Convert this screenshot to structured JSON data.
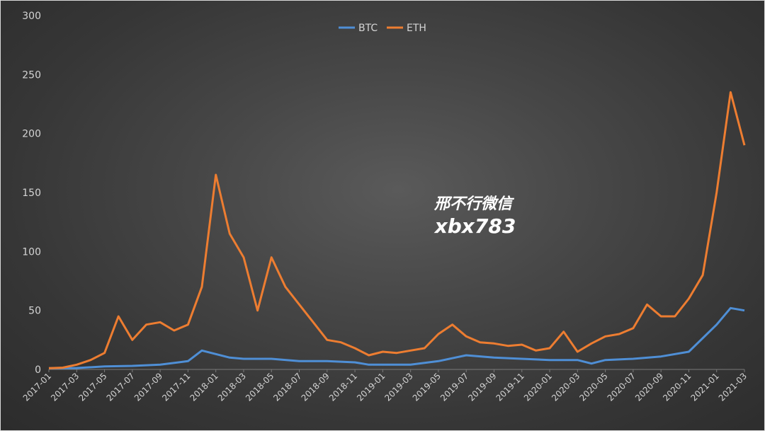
{
  "chart_data": {
    "type": "line",
    "title": "",
    "xlabel": "",
    "ylabel": "",
    "ylim": [
      0,
      300
    ],
    "yticks": [
      0,
      50,
      100,
      150,
      200,
      250,
      300
    ],
    "xlim": [
      "2017-01",
      "2021-03"
    ],
    "xtick_labels": [
      "2017-01",
      "2017-03",
      "2017-05",
      "2017-07",
      "2017-09",
      "2017-11",
      "2018-01",
      "2018-03",
      "2018-05",
      "2018-07",
      "2018-09",
      "2018-11",
      "2019-01",
      "2019-03",
      "2019-05",
      "2019-07",
      "2019-09",
      "2019-11",
      "2020-01",
      "2020-03",
      "2020-05",
      "2020-07",
      "2020-09",
      "2020-11",
      "2021-01",
      "2021-03"
    ],
    "grid": false,
    "legend_position": "top-center",
    "series": [
      {
        "name": "BTC",
        "color": "#4f8fd6",
        "x": [
          "2017-01",
          "2017-03",
          "2017-05",
          "2017-07",
          "2017-09",
          "2017-11",
          "2017-12",
          "2018-01",
          "2018-02",
          "2018-03",
          "2018-05",
          "2018-07",
          "2018-09",
          "2018-11",
          "2018-12",
          "2019-01",
          "2019-03",
          "2019-05",
          "2019-07",
          "2019-09",
          "2019-11",
          "2020-01",
          "2020-03",
          "2020-04",
          "2020-05",
          "2020-07",
          "2020-09",
          "2020-11",
          "2021-01",
          "2021-02",
          "2021-03"
        ],
        "y": [
          1,
          1.2,
          2.5,
          3,
          4,
          7,
          16,
          13,
          10,
          9,
          9,
          7,
          7,
          6,
          4,
          4,
          4,
          7,
          12,
          10,
          9,
          8,
          8,
          5,
          8,
          9,
          11,
          15,
          38,
          52,
          50
        ]
      },
      {
        "name": "ETH",
        "color": "#ed7d31",
        "x": [
          "2017-01",
          "2017-02",
          "2017-03",
          "2017-04",
          "2017-05",
          "2017-06",
          "2017-07",
          "2017-08",
          "2017-09",
          "2017-10",
          "2017-11",
          "2017-12",
          "2018-01",
          "2018-02",
          "2018-03",
          "2018-04",
          "2018-05",
          "2018-06",
          "2018-07",
          "2018-08",
          "2018-09",
          "2018-10",
          "2018-11",
          "2018-12",
          "2019-01",
          "2019-02",
          "2019-03",
          "2019-04",
          "2019-05",
          "2019-06",
          "2019-07",
          "2019-08",
          "2019-09",
          "2019-10",
          "2019-11",
          "2019-12",
          "2020-01",
          "2020-02",
          "2020-03",
          "2020-04",
          "2020-05",
          "2020-06",
          "2020-07",
          "2020-08",
          "2020-09",
          "2020-10",
          "2020-11",
          "2020-12",
          "2021-01",
          "2021-02",
          "2021-03"
        ],
        "y": [
          1,
          1.5,
          4,
          8,
          14,
          45,
          25,
          38,
          40,
          33,
          38,
          70,
          165,
          115,
          95,
          50,
          95,
          70,
          55,
          40,
          25,
          23,
          18,
          12,
          15,
          14,
          16,
          18,
          30,
          38,
          28,
          23,
          22,
          20,
          21,
          16,
          18,
          32,
          15,
          22,
          28,
          30,
          35,
          55,
          45,
          45,
          60,
          80,
          150,
          235,
          190
        ]
      }
    ]
  },
  "legend": {
    "btc_label": "BTC",
    "eth_label": "ETH"
  },
  "watermark": {
    "line1": "邢不行微信",
    "line2": "xbx783"
  }
}
